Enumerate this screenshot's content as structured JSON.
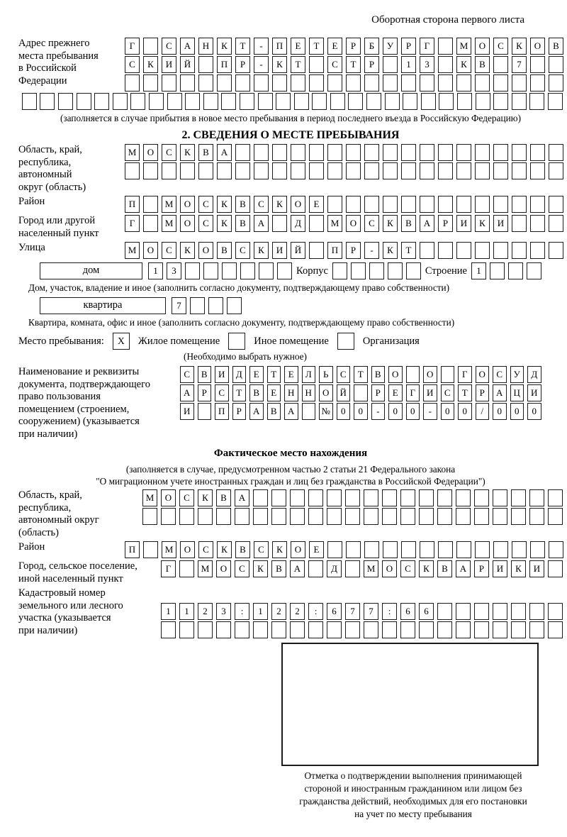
{
  "header": {
    "note": "Оборотная сторона первого листа"
  },
  "prev_address": {
    "label": "Адрес прежнего\nместа пребывания\nв Российской\nФедерации",
    "row1": [
      "Г",
      "",
      "С",
      "А",
      "Н",
      "К",
      "Т",
      "-",
      "П",
      "Е",
      "Т",
      "Е",
      "Р",
      "Б",
      "У",
      "Р",
      "Г",
      "",
      "М",
      "О",
      "С",
      "К",
      "О",
      "В"
    ],
    "row2": [
      "С",
      "К",
      "И",
      "Й",
      "",
      "П",
      "Р",
      "-",
      "К",
      "Т",
      "",
      "С",
      "Т",
      "Р",
      "",
      "1",
      "3",
      "",
      "К",
      "В",
      "",
      "7",
      "",
      ""
    ],
    "row3": [
      "",
      "",
      "",
      "",
      "",
      "",
      "",
      "",
      "",
      "",
      "",
      "",
      "",
      "",
      "",
      "",
      "",
      "",
      "",
      "",
      "",
      "",
      "",
      ""
    ],
    "row4": [
      "",
      "",
      "",
      "",
      "",
      "",
      "",
      "",
      "",
      "",
      "",
      "",
      "",
      "",
      "",
      "",
      "",
      "",
      "",
      "",
      "",
      "",
      "",
      "",
      "",
      "",
      "",
      "",
      "",
      ""
    ],
    "caption": "(заполняется в случае прибытия в новое место пребывания в период последнего въезда в Российскую Федерацию)"
  },
  "section2": {
    "title": "2. СВЕДЕНИЯ О МЕСТЕ ПРЕБЫВАНИЯ",
    "oblast": {
      "label": "Область, край,\nреспублика,\nавтономный\nокруг (область)",
      "row1": [
        "М",
        "О",
        "С",
        "К",
        "В",
        "А",
        "",
        "",
        "",
        "",
        "",
        "",
        "",
        "",
        "",
        "",
        "",
        "",
        "",
        "",
        "",
        "",
        "",
        ""
      ],
      "row2": [
        "",
        "",
        "",
        "",
        "",
        "",
        "",
        "",
        "",
        "",
        "",
        "",
        "",
        "",
        "",
        "",
        "",
        "",
        "",
        "",
        "",
        "",
        "",
        ""
      ]
    },
    "raion": {
      "label": "Район",
      "row": [
        "П",
        "",
        "М",
        "О",
        "С",
        "К",
        "В",
        "С",
        "К",
        "О",
        "Е",
        "",
        "",
        "",
        "",
        "",
        "",
        "",
        "",
        "",
        "",
        "",
        "",
        ""
      ]
    },
    "gorod": {
      "label": "Город или другой\nнаселенный пункт",
      "row": [
        "Г",
        "",
        "М",
        "О",
        "С",
        "К",
        "В",
        "А",
        "",
        "Д",
        "",
        "М",
        "О",
        "С",
        "К",
        "В",
        "А",
        "Р",
        "И",
        "К",
        "И",
        "",
        "",
        ""
      ]
    },
    "ulitsa": {
      "label": "Улица",
      "row": [
        "М",
        "О",
        "С",
        "К",
        "О",
        "В",
        "С",
        "К",
        "И",
        "Й",
        "",
        "П",
        "Р",
        "-",
        "К",
        "Т",
        "",
        "",
        "",
        "",
        "",
        "",
        "",
        ""
      ]
    },
    "dom": {
      "box_label": "дом",
      "cells": [
        "1",
        "3",
        "",
        "",
        "",
        "",
        "",
        ""
      ],
      "korpus_label": "Корпус",
      "korpus_cells": [
        "",
        "",
        "",
        "",
        ""
      ],
      "stroenie_label": "Строение",
      "stroenie_cells": [
        "1",
        "",
        "",
        ""
      ],
      "caption": "Дом, участок, владение и иное (заполнить согласно документу, подтверждающему право собственности)"
    },
    "kvartira": {
      "box_label": "квартира",
      "cells": [
        "7",
        "",
        "",
        ""
      ],
      "caption": "Квартира, комната, офис и иное (заполнить согласно документу, подтверждающему право собственности)"
    },
    "mesto": {
      "label": "Место пребывания:",
      "options": [
        {
          "label": "Жилое помещение",
          "mark": "X"
        },
        {
          "label": "Иное помещение",
          "mark": ""
        },
        {
          "label": "Организация",
          "mark": ""
        }
      ],
      "note": "(Необходимо выбрать нужное)"
    },
    "doc": {
      "label": "Наименование и реквизиты\nдокумента, подтверждающего\nправо пользования\nпомещением (строением,\nсооружением) (указывается\nпри наличии)",
      "row1": [
        "С",
        "В",
        "И",
        "Д",
        "Е",
        "Т",
        "Е",
        "Л",
        "Ь",
        "С",
        "Т",
        "В",
        "О",
        "",
        "О",
        "",
        "Г",
        "О",
        "С",
        "У",
        "Д"
      ],
      "row2": [
        "А",
        "Р",
        "С",
        "Т",
        "В",
        "Е",
        "Н",
        "Н",
        "О",
        "Й",
        "",
        "Р",
        "Е",
        "Г",
        "И",
        "С",
        "Т",
        "Р",
        "А",
        "Ц",
        "И"
      ],
      "row3": [
        "И",
        "",
        "П",
        "Р",
        "А",
        "В",
        "А",
        "",
        "№",
        "0",
        "0",
        "-",
        "0",
        "0",
        "-",
        "0",
        "0",
        "/",
        "0",
        "0",
        "0"
      ]
    }
  },
  "fact": {
    "title": "Фактическое место нахождения",
    "note": "(заполняется в случае, предусмотренном частью 2 статьи 21 Федерального закона\n\"О миграционном учете иностранных граждан и лиц без гражданства в Российской Федерации\")",
    "oblast": {
      "label": "Область, край,\nреспублика,\nавтономный округ\n(область)",
      "row1": [
        "М",
        "О",
        "С",
        "К",
        "В",
        "А",
        "",
        "",
        "",
        "",
        "",
        "",
        "",
        "",
        "",
        "",
        "",
        "",
        "",
        "",
        "",
        "",
        ""
      ],
      "row2": [
        "",
        "",
        "",
        "",
        "",
        "",
        "",
        "",
        "",
        "",
        "",
        "",
        "",
        "",
        "",
        "",
        "",
        "",
        "",
        "",
        "",
        "",
        ""
      ]
    },
    "raion": {
      "label": "Район",
      "row": [
        "П",
        "",
        "М",
        "О",
        "С",
        "К",
        "В",
        "С",
        "К",
        "О",
        "Е",
        "",
        "",
        "",
        "",
        "",
        "",
        "",
        "",
        "",
        "",
        "",
        "",
        ""
      ]
    },
    "gorod": {
      "label": "Город, сельское поселение,\nиной населенный пункт",
      "row": [
        "Г",
        "",
        "М",
        "О",
        "С",
        "К",
        "В",
        "А",
        "",
        "Д",
        "",
        "М",
        "О",
        "С",
        "К",
        "В",
        "А",
        "Р",
        "И",
        "К",
        "И",
        ""
      ]
    },
    "kadastr": {
      "label": "Кадастровый номер\nземельного или лесного\nучастка (указывается\nпри наличии)",
      "row1": [
        "1",
        "1",
        "2",
        "3",
        ":",
        "1",
        "2",
        "2",
        ":",
        "6",
        "7",
        "7",
        ":",
        "6",
        "6",
        "",
        "",
        "",
        "",
        "",
        "",
        ""
      ],
      "row2": [
        "",
        "",
        "",
        "",
        "",
        "",
        "",
        "",
        "",
        "",
        "",
        "",
        "",
        "",
        "",
        "",
        "",
        "",
        "",
        "",
        "",
        ""
      ]
    },
    "stamp": {
      "caption": "Отметка о подтверждении выполнения принимающей\nстороной и иностранным гражданином или лицом без\nгражданства действий, необходимых для его постановки\nна учет по месту пребывания"
    }
  }
}
